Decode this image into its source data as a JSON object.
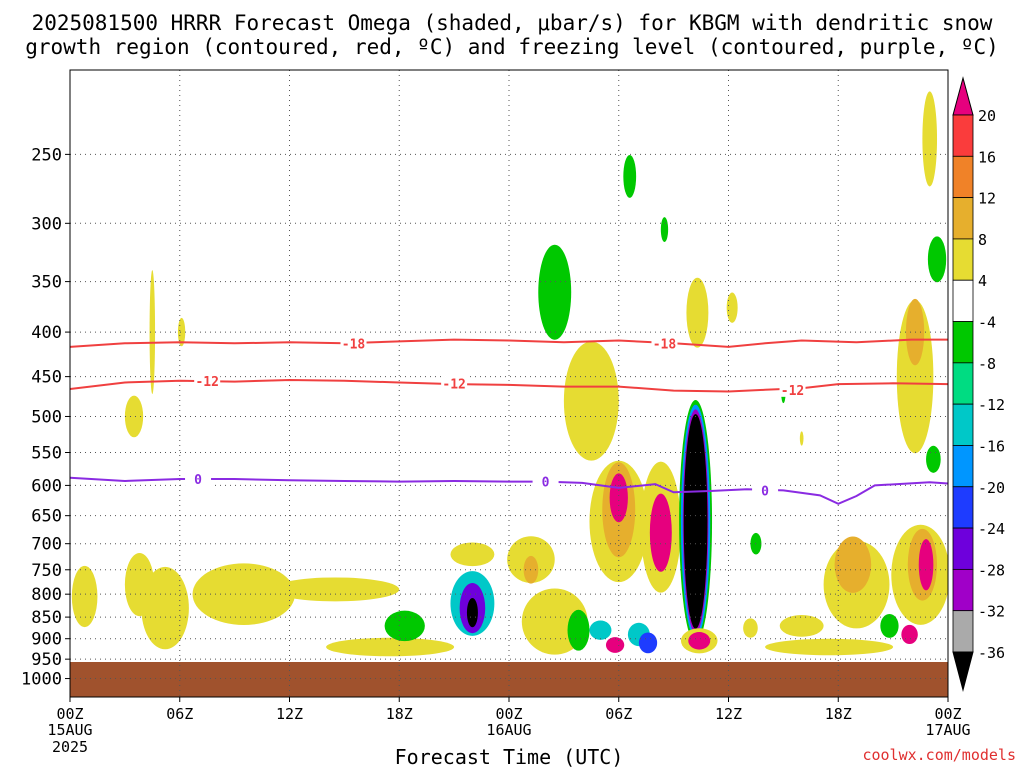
{
  "chart_data": {
    "type": "heatmap",
    "title_line1": "2025081500 HRRR Forecast Omega (shaded, μbar/s) for KBGM with dendritic snow",
    "title_line2": "growth region (contoured, red, ºC) and freezing level (contoured, purple, ºC)",
    "xlabel": "Forecast Time (UTC)",
    "x_range_hours": [
      0,
      48
    ],
    "x_ticks": [
      {
        "hour": 0,
        "label": "00Z",
        "sub": "15AUG",
        "sub2": "2025"
      },
      {
        "hour": 6,
        "label": "06Z"
      },
      {
        "hour": 12,
        "label": "12Z"
      },
      {
        "hour": 18,
        "label": "18Z"
      },
      {
        "hour": 24,
        "label": "00Z",
        "sub": "16AUG"
      },
      {
        "hour": 30,
        "label": "06Z"
      },
      {
        "hour": 36,
        "label": "12Z"
      },
      {
        "hour": 42,
        "label": "18Z"
      },
      {
        "hour": 48,
        "label": "00Z",
        "sub": "17AUG"
      }
    ],
    "y_range_hpa": [
      200,
      1050
    ],
    "y_scale": "log",
    "y_ticks": [
      250,
      300,
      350,
      400,
      450,
      500,
      550,
      600,
      650,
      700,
      750,
      800,
      850,
      900,
      950,
      1000
    ],
    "grid": true,
    "colorbar": {
      "levels": [
        -36,
        -32,
        -28,
        -24,
        -20,
        -16,
        -12,
        -8,
        -4,
        4,
        8,
        12,
        16,
        20
      ],
      "colors": [
        "#000000",
        "#aaaaaa",
        "#a000c8",
        "#6e00dc",
        "#1e3cff",
        "#0096ff",
        "#00c8c8",
        "#00dc82",
        "#00c800",
        "#ffffff",
        "#e6dc32",
        "#e6af2d",
        "#f08228",
        "#fa3c3c",
        "#e6007e"
      ]
    },
    "contours": [
      {
        "label": "-18",
        "color": "#f04040",
        "points": [
          [
            0,
            416
          ],
          [
            3,
            412
          ],
          [
            6,
            411
          ],
          [
            9,
            412
          ],
          [
            12,
            411
          ],
          [
            15,
            412
          ],
          [
            18,
            410
          ],
          [
            21,
            408
          ],
          [
            24,
            409
          ],
          [
            27,
            411
          ],
          [
            30,
            409
          ],
          [
            33,
            412
          ],
          [
            36,
            416
          ],
          [
            38,
            412
          ],
          [
            40,
            409
          ],
          [
            43,
            411
          ],
          [
            46,
            408
          ],
          [
            48,
            408
          ]
        ]
      },
      {
        "label": "-12",
        "color": "#f04040",
        "points": [
          [
            0,
            465
          ],
          [
            3,
            457
          ],
          [
            6,
            455
          ],
          [
            9,
            456
          ],
          [
            12,
            454
          ],
          [
            15,
            455
          ],
          [
            18,
            457
          ],
          [
            21,
            459
          ],
          [
            24,
            460
          ],
          [
            27,
            462
          ],
          [
            30,
            462
          ],
          [
            33,
            467
          ],
          [
            36,
            468
          ],
          [
            38,
            466
          ],
          [
            40,
            464
          ],
          [
            42,
            459
          ],
          [
            45,
            458
          ],
          [
            48,
            459
          ]
        ]
      },
      {
        "label": "0",
        "color": "#8a2be2",
        "points": [
          [
            0,
            588
          ],
          [
            3,
            593
          ],
          [
            6,
            590
          ],
          [
            9,
            590
          ],
          [
            12,
            592
          ],
          [
            15,
            593
          ],
          [
            18,
            594
          ],
          [
            21,
            593
          ],
          [
            24,
            594
          ],
          [
            26,
            594
          ],
          [
            28,
            596
          ],
          [
            30,
            604
          ],
          [
            32,
            598
          ],
          [
            33,
            611
          ],
          [
            35,
            609
          ],
          [
            37,
            606
          ],
          [
            39,
            608
          ],
          [
            41,
            616
          ],
          [
            42,
            630
          ],
          [
            43,
            617
          ],
          [
            44,
            600
          ],
          [
            47,
            595
          ],
          [
            48,
            597
          ]
        ]
      }
    ],
    "contour_labels": [
      {
        "label": "-18",
        "hour": 15.5,
        "hpa": 412
      },
      {
        "label": "-18",
        "hour": 32.5,
        "hpa": 412
      },
      {
        "label": "-12",
        "hour": 7.5,
        "hpa": 455
      },
      {
        "label": "-12",
        "hour": 21,
        "hpa": 458
      },
      {
        "label": "-12",
        "hour": 39.5,
        "hpa": 466
      },
      {
        "label": "0",
        "hour": 7,
        "hpa": 590
      },
      {
        "label": "0",
        "hour": 26,
        "hpa": 594
      },
      {
        "label": "0",
        "hour": 38,
        "hpa": 608
      }
    ],
    "omega_regions": [
      {
        "hour": 0.8,
        "hpa": 805,
        "dh": 0.7,
        "dp": 130,
        "v": 5
      },
      {
        "hour": 3.8,
        "hpa": 780,
        "dh": 0.8,
        "dp": 130,
        "v": 5
      },
      {
        "hour": 4.5,
        "hpa": 400,
        "dh": 0.15,
        "dp": 130,
        "v": 5
      },
      {
        "hour": 3.5,
        "hpa": 500,
        "dh": 0.5,
        "dp": 55,
        "v": 5
      },
      {
        "hour": 6.1,
        "hpa": 400,
        "dh": 0.2,
        "dp": 30,
        "v": 5
      },
      {
        "hour": 5.2,
        "hpa": 830,
        "dh": 1.3,
        "dp": 180,
        "v": 5
      },
      {
        "hour": 9.5,
        "hpa": 800,
        "dh": 2.8,
        "dp": 130,
        "v": 5
      },
      {
        "hour": 14.5,
        "hpa": 790,
        "dh": 3.5,
        "dp": 50,
        "v": 5
      },
      {
        "hour": 17.5,
        "hpa": 920,
        "dh": 3.5,
        "dp": 45,
        "v": 5
      },
      {
        "hour": 18.3,
        "hpa": 870,
        "dh": 1.1,
        "dp": 70,
        "v": -6
      },
      {
        "hour": 22,
        "hpa": 720,
        "dh": 1.2,
        "dp": 45,
        "v": 5
      },
      {
        "hour": 22,
        "hpa": 820,
        "dh": 1.2,
        "dp": 140,
        "v": -14
      },
      {
        "hour": 22,
        "hpa": 830,
        "dh": 0.7,
        "dp": 110,
        "v": -26
      },
      {
        "hour": 22,
        "hpa": 840,
        "dh": 0.3,
        "dp": 65,
        "v": -40
      },
      {
        "hour": 25.2,
        "hpa": 730,
        "dh": 1.3,
        "dp": 90,
        "v": 5
      },
      {
        "hour": 25.2,
        "hpa": 750,
        "dh": 0.4,
        "dp": 55,
        "v": 10
      },
      {
        "hour": 26.5,
        "hpa": 860,
        "dh": 1.8,
        "dp": 150,
        "v": 5
      },
      {
        "hour": 28.5,
        "hpa": 480,
        "dh": 1.5,
        "dp": 150,
        "v": 5
      },
      {
        "hour": 26.5,
        "hpa": 360,
        "dh": 0.9,
        "dp": 90,
        "v": -6
      },
      {
        "hour": 27.8,
        "hpa": 880,
        "dh": 0.6,
        "dp": 95,
        "v": -6
      },
      {
        "hour": 29,
        "hpa": 880,
        "dh": 0.6,
        "dp": 45,
        "v": -14
      },
      {
        "hour": 30,
        "hpa": 660,
        "dh": 1.6,
        "dp": 210,
        "v": 5
      },
      {
        "hour": 30,
        "hpa": 640,
        "dh": 0.9,
        "dp": 160,
        "v": 10
      },
      {
        "hour": 30,
        "hpa": 620,
        "dh": 0.5,
        "dp": 80,
        "v": 22
      },
      {
        "hour": 29.8,
        "hpa": 915,
        "dh": 0.5,
        "dp": 38,
        "v": 22
      },
      {
        "hour": 32.3,
        "hpa": 670,
        "dh": 1.1,
        "dp": 230,
        "v": 5
      },
      {
        "hour": 32.3,
        "hpa": 680,
        "dh": 0.6,
        "dp": 140,
        "v": 22
      },
      {
        "hour": 30.6,
        "hpa": 265,
        "dh": 0.35,
        "dp": 30,
        "v": -6
      },
      {
        "hour": 32.5,
        "hpa": 305,
        "dh": 0.2,
        "dp": 20,
        "v": -6
      },
      {
        "hour": 31.1,
        "hpa": 890,
        "dh": 0.6,
        "dp": 55,
        "v": -14
      },
      {
        "hour": 31.6,
        "hpa": 910,
        "dh": 0.5,
        "dp": 50,
        "v": -22
      },
      {
        "hour": 34.2,
        "hpa": 660,
        "dh": 0.9,
        "dp": 410,
        "v": -8
      },
      {
        "hour": 34.2,
        "hpa": 660,
        "dh": 0.8,
        "dp": 395,
        "v": -18
      },
      {
        "hour": 34.2,
        "hpa": 660,
        "dh": 0.7,
        "dp": 380,
        "v": -30
      },
      {
        "hour": 34.2,
        "hpa": 660,
        "dh": 0.65,
        "dp": 365,
        "v": -40
      },
      {
        "hour": 34.4,
        "hpa": 905,
        "dh": 1.0,
        "dp": 60,
        "v": 5
      },
      {
        "hour": 34.4,
        "hpa": 905,
        "dh": 0.6,
        "dp": 42,
        "v": 22
      },
      {
        "hour": 36.2,
        "hpa": 375,
        "dh": 0.3,
        "dp": 30,
        "v": 5
      },
      {
        "hour": 39,
        "hpa": 470,
        "dh": 0.12,
        "dp": 25,
        "v": -6
      },
      {
        "hour": 40,
        "hpa": 530,
        "dh": 0.1,
        "dp": 20,
        "v": 5
      },
      {
        "hour": 34.3,
        "hpa": 380,
        "dh": 0.6,
        "dp": 70,
        "v": 5
      },
      {
        "hour": 37.5,
        "hpa": 700,
        "dh": 0.3,
        "dp": 40,
        "v": -6
      },
      {
        "hour": 37.2,
        "hpa": 875,
        "dh": 0.4,
        "dp": 45,
        "v": 5
      },
      {
        "hour": 40,
        "hpa": 870,
        "dh": 1.2,
        "dp": 50,
        "v": 5
      },
      {
        "hour": 41.5,
        "hpa": 920,
        "dh": 3.5,
        "dp": 40,
        "v": 5
      },
      {
        "hour": 43,
        "hpa": 780,
        "dh": 1.8,
        "dp": 180,
        "v": 5
      },
      {
        "hour": 42.8,
        "hpa": 740,
        "dh": 1.0,
        "dp": 110,
        "v": 10
      },
      {
        "hour": 44.8,
        "hpa": 870,
        "dh": 0.5,
        "dp": 55,
        "v": -6
      },
      {
        "hour": 45.9,
        "hpa": 890,
        "dh": 0.45,
        "dp": 45,
        "v": 22
      },
      {
        "hour": 46.5,
        "hpa": 760,
        "dh": 1.6,
        "dp": 200,
        "v": 5
      },
      {
        "hour": 46.6,
        "hpa": 740,
        "dh": 0.8,
        "dp": 140,
        "v": 10
      },
      {
        "hour": 46.8,
        "hpa": 740,
        "dh": 0.4,
        "dp": 100,
        "v": 22
      },
      {
        "hour": 46.2,
        "hpa": 450,
        "dh": 1.0,
        "dp": 180,
        "v": 5
      },
      {
        "hour": 46.2,
        "hpa": 400,
        "dh": 0.5,
        "dp": 70,
        "v": 10
      },
      {
        "hour": 47.4,
        "hpa": 330,
        "dh": 0.5,
        "dp": 40,
        "v": -6
      },
      {
        "hour": 47.2,
        "hpa": 560,
        "dh": 0.4,
        "dp": 40,
        "v": -6
      },
      {
        "hour": 47.0,
        "hpa": 240,
        "dh": 0.4,
        "dp": 60,
        "v": 5
      }
    ]
  },
  "watermark": "coolwx.com/models"
}
